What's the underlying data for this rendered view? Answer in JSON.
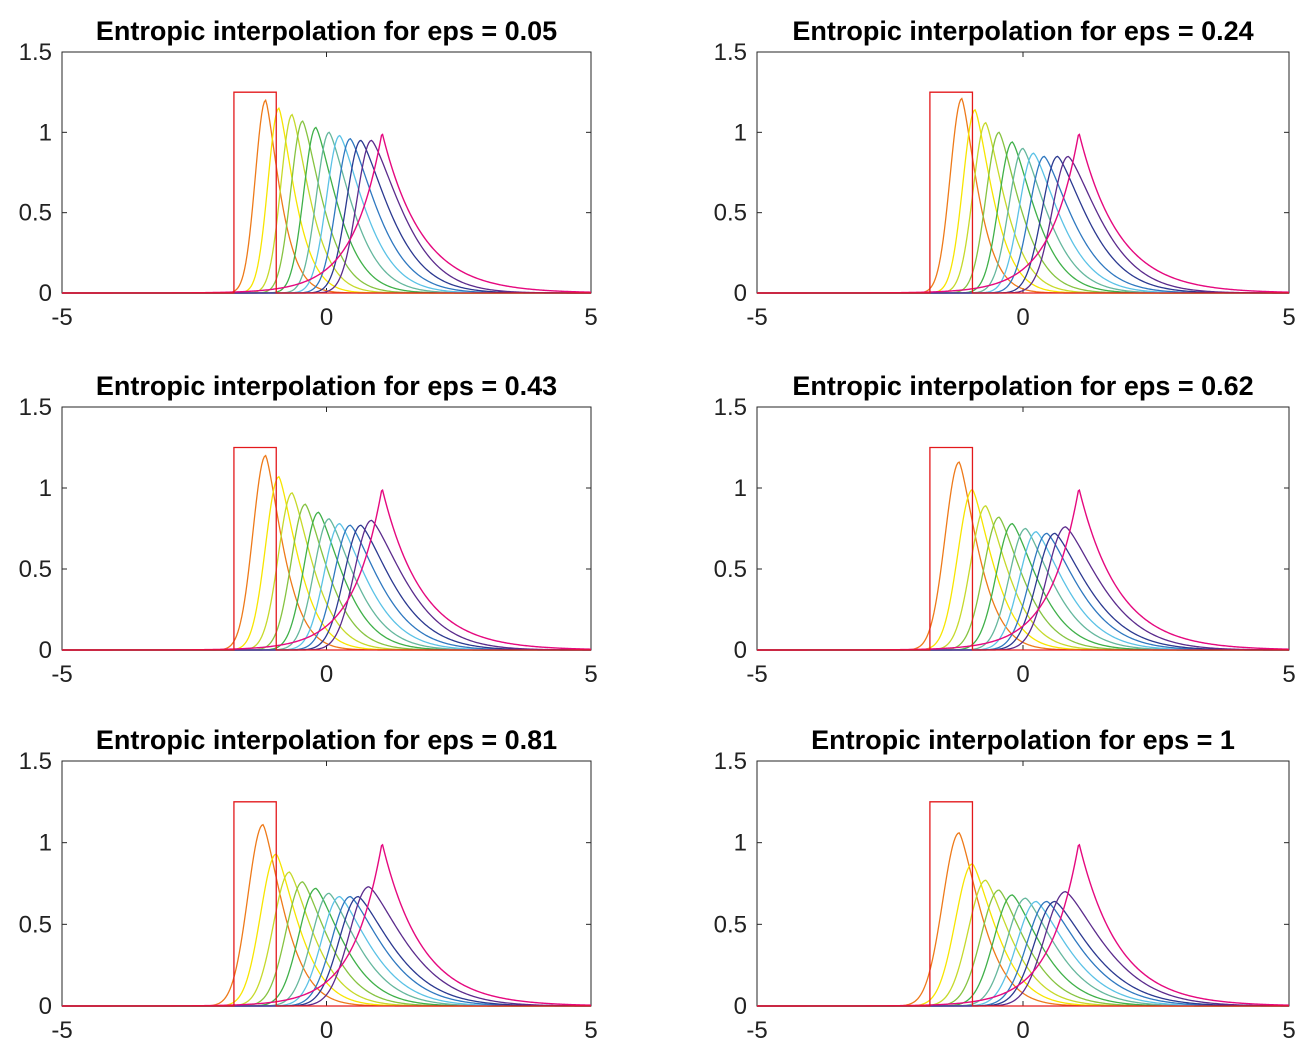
{
  "figure": {
    "panels": [
      {
        "title": "Entropic interpolation for eps = 0.05",
        "eps": 0.05
      },
      {
        "title": "Entropic interpolation for eps = 0.24",
        "eps": 0.24
      },
      {
        "title": "Entropic interpolation for eps = 0.43",
        "eps": 0.43
      },
      {
        "title": "Entropic interpolation for eps = 0.62",
        "eps": 0.62
      },
      {
        "title": "Entropic interpolation for eps = 0.81",
        "eps": 0.81
      },
      {
        "title": "Entropic interpolation for eps = 1",
        "eps": 1
      }
    ]
  },
  "chart_data": {
    "type": "line",
    "layout": "3x2 grid of subplots",
    "xlim": [
      -5,
      5
    ],
    "ylim": [
      0,
      1.5
    ],
    "xticks": [
      "-5",
      "0",
      "5"
    ],
    "yticks": [
      "0",
      "0.5",
      "1",
      "1.5"
    ],
    "grid": false,
    "legend": "none",
    "initial_density": {
      "shape": "box",
      "x": [
        -1.75,
        -0.95
      ],
      "height": 1.25,
      "color": "#e3191c"
    },
    "final_density": {
      "shape": "exponential-tailed peak",
      "peak_x": 1.05,
      "peak_y": 1.0,
      "color": "#e5097f"
    },
    "intermediate_colors": [
      "#e3191c",
      "#ee7a1a",
      "#f7e500",
      "#c6d92b",
      "#86c341",
      "#3fb049",
      "#65b79d",
      "#5bc2e6",
      "#2f78c0",
      "#2b3990",
      "#5b2b8c",
      "#9c3e96",
      "#e5097f"
    ],
    "interpolation_peaks": [
      {
        "eps": 0.05,
        "peak_x": [
          -1.15,
          -0.9,
          -0.65,
          -0.45,
          -0.2,
          0.05,
          0.25,
          0.45,
          0.65,
          0.85,
          1.05
        ],
        "peak_y": [
          1.2,
          1.15,
          1.11,
          1.07,
          1.03,
          1.0,
          0.98,
          0.96,
          0.95,
          0.95,
          1.0
        ]
      },
      {
        "eps": 0.24,
        "peak_x": [
          -1.15,
          -0.9,
          -0.7,
          -0.45,
          -0.2,
          0.0,
          0.2,
          0.4,
          0.65,
          0.85,
          1.05
        ],
        "peak_y": [
          1.21,
          1.14,
          1.06,
          1.0,
          0.94,
          0.9,
          0.87,
          0.85,
          0.85,
          0.85,
          1.0
        ]
      },
      {
        "eps": 0.43,
        "peak_x": [
          -1.15,
          -0.9,
          -0.65,
          -0.4,
          -0.15,
          0.05,
          0.25,
          0.45,
          0.65,
          0.85,
          1.05
        ],
        "peak_y": [
          1.2,
          1.07,
          0.97,
          0.9,
          0.85,
          0.81,
          0.78,
          0.77,
          0.77,
          0.8,
          1.0
        ]
      },
      {
        "eps": 0.62,
        "peak_x": [
          -1.2,
          -0.95,
          -0.7,
          -0.45,
          -0.2,
          0.05,
          0.25,
          0.45,
          0.6,
          0.8,
          1.05
        ],
        "peak_y": [
          1.16,
          0.99,
          0.89,
          0.82,
          0.78,
          0.75,
          0.73,
          0.72,
          0.72,
          0.76,
          1.0
        ]
      },
      {
        "eps": 0.81,
        "peak_x": [
          -1.2,
          -0.95,
          -0.7,
          -0.45,
          -0.2,
          0.05,
          0.25,
          0.45,
          0.6,
          0.8,
          1.05
        ],
        "peak_y": [
          1.11,
          0.93,
          0.82,
          0.76,
          0.72,
          0.69,
          0.67,
          0.67,
          0.67,
          0.73,
          1.0
        ]
      },
      {
        "eps": 1,
        "peak_x": [
          -1.2,
          -0.95,
          -0.7,
          -0.45,
          -0.2,
          0.05,
          0.25,
          0.45,
          0.6,
          0.8,
          1.05
        ],
        "peak_y": [
          1.06,
          0.87,
          0.77,
          0.71,
          0.68,
          0.66,
          0.64,
          0.64,
          0.64,
          0.7,
          1.0
        ]
      }
    ]
  }
}
